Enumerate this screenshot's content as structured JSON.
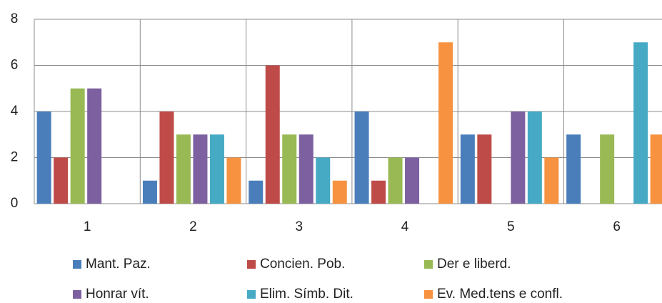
{
  "chart_data": {
    "type": "bar",
    "categories": [
      "1",
      "2",
      "3",
      "4",
      "5",
      "6"
    ],
    "series": [
      {
        "name": "Mant. Paz.",
        "color": "#4a7ebb",
        "values": [
          4,
          1,
          1,
          4,
          3,
          3
        ]
      },
      {
        "name": "Concien. Pob.",
        "color": "#be4b48",
        "values": [
          2,
          4,
          6,
          1,
          3,
          0
        ]
      },
      {
        "name": "Der e liberd.",
        "color": "#98b954",
        "values": [
          5,
          3,
          3,
          2,
          0,
          3
        ]
      },
      {
        "name": "Honrar vít.",
        "color": "#7d60a0",
        "values": [
          5,
          3,
          3,
          2,
          4,
          0
        ]
      },
      {
        "name": "Elim. Símb. Dit.",
        "color": "#46aac5",
        "values": [
          0,
          3,
          2,
          0,
          4,
          7
        ]
      },
      {
        "name": "Ev. Med.tens e confl.",
        "color": "#f69240",
        "values": [
          0,
          2,
          1,
          7,
          2,
          3
        ]
      }
    ],
    "ylim": [
      0,
      8
    ],
    "yticks": [
      0,
      2,
      4,
      6,
      8
    ],
    "grid": true,
    "legend": "bottom"
  }
}
